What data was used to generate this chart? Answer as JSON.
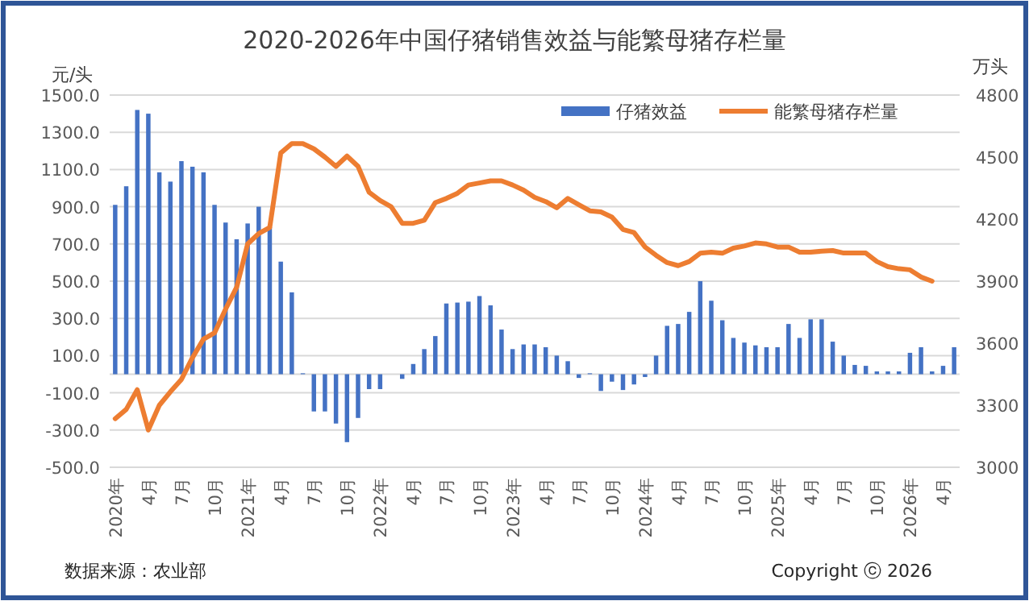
{
  "chart_data": {
    "type": "bar",
    "title": "2020-2026年中国仔猪销售效益与能繁母猪存栏量",
    "categories": [
      "2020年",
      null,
      null,
      "4月",
      null,
      null,
      "7月",
      null,
      null,
      "10月",
      null,
      null,
      "2021年",
      null,
      null,
      "4月",
      null,
      null,
      "7月",
      null,
      null,
      "10月",
      null,
      null,
      "2022年",
      null,
      null,
      "4月",
      null,
      null,
      "7月",
      null,
      null,
      "10月",
      null,
      null,
      "2023年",
      null,
      null,
      "4月",
      null,
      null,
      "7月",
      null,
      null,
      "10月",
      null,
      null,
      "2024年",
      null,
      null,
      "4月",
      null,
      null,
      "7月",
      null,
      null,
      "10月",
      null,
      null,
      "2025年",
      null,
      null,
      "4月",
      null,
      null,
      "7月",
      null,
      null,
      "10月",
      null,
      null,
      "2026年",
      null,
      null,
      "4月",
      null
    ],
    "series": [
      {
        "name": "仔猪效益",
        "color": "#4472c4",
        "values": [
          910,
          1010,
          1420,
          1400,
          1085,
          1035,
          1145,
          1115,
          1085,
          910,
          815,
          725,
          810,
          900,
          790,
          605,
          440,
          5,
          -200,
          -200,
          -265,
          -365,
          -235,
          -80,
          -80,
          0,
          -25,
          55,
          135,
          205,
          380,
          385,
          390,
          420,
          370,
          240,
          135,
          160,
          160,
          145,
          100,
          70,
          -20,
          5,
          -90,
          -40,
          -85,
          -55,
          -15,
          100,
          260,
          270,
          335,
          500,
          395,
          290,
          195,
          170,
          155,
          145,
          145,
          270,
          195,
          295,
          295,
          175,
          100,
          50,
          45,
          15,
          15,
          15,
          115,
          145,
          15,
          45,
          145
        ]
      },
      {
        "name": "能繁母猪存栏量",
        "type": "line",
        "axis": "y2",
        "color": "#ed7d31",
        "values": [
          3235,
          3280,
          3375,
          3180,
          3300,
          3365,
          3425,
          3530,
          3620,
          3650,
          3765,
          3870,
          4080,
          4130,
          4160,
          4520,
          4565,
          4565,
          4540,
          4500,
          4455,
          4505,
          4455,
          4330,
          4290,
          4260,
          4180,
          4180,
          4195,
          4280,
          4300,
          4325,
          4365,
          4375,
          4385,
          4385,
          4365,
          4340,
          4305,
          4285,
          4255,
          4300,
          4270,
          4240,
          4235,
          4210,
          4150,
          4135,
          4065,
          4025,
          3990,
          3975,
          3995,
          4035,
          4040,
          4035,
          4060,
          4070,
          4085,
          4080,
          4065,
          4065,
          4040,
          4040,
          4045,
          4048,
          4036,
          4036,
          4036,
          3995,
          3970,
          3960,
          3955,
          3920,
          3900,
          null,
          null
        ]
      }
    ],
    "ylabel": "元/头",
    "y2label": "万头",
    "ylim": [
      -500,
      1500
    ],
    "yticks": [
      {
        "value": -500,
        "label": "-500.0"
      },
      {
        "value": -300,
        "label": "-300.0"
      },
      {
        "value": -100,
        "label": "-100.0"
      },
      {
        "value": 100,
        "label": "100.0"
      },
      {
        "value": 300,
        "label": "300.0"
      },
      {
        "value": 500,
        "label": "500.0"
      },
      {
        "value": 700,
        "label": "700.0"
      },
      {
        "value": 900,
        "label": "900.0"
      },
      {
        "value": 1100,
        "label": "1100.0"
      },
      {
        "value": 1300,
        "label": "1300.0"
      },
      {
        "value": 1500,
        "label": "1500.0"
      }
    ],
    "y2lim": [
      3000,
      4800
    ],
    "y2ticks": [
      3000,
      3300,
      3600,
      3900,
      4200,
      4500,
      4800
    ],
    "grid": "y",
    "legend": "top right",
    "line_style": "solid",
    "marker": "none",
    "annotations": [
      "数据来源：农业部",
      "Copyright ⓒ 2026"
    ]
  }
}
